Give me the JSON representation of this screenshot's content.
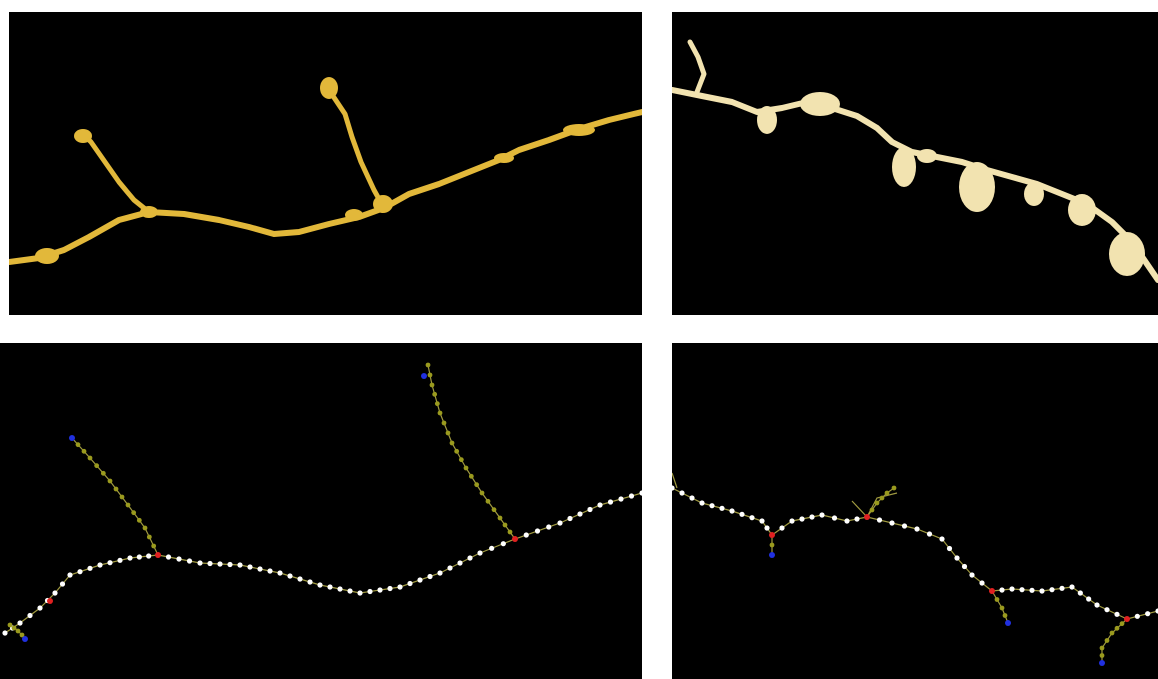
{
  "figure": {
    "panels": [
      {
        "id": "top-left",
        "content": "dendrite-surface-render",
        "color": "#e2b83a"
      },
      {
        "id": "top-right",
        "content": "dendrite-surface-render",
        "color": "#f2e3b0"
      },
      {
        "id": "bottom-left",
        "content": "dendrite-skeleton-graph"
      },
      {
        "id": "bottom-right",
        "content": "dendrite-skeleton-graph"
      }
    ],
    "node_colors": {
      "trunk": "#ffffff",
      "branch": "#9a9a1e",
      "branch_point": "#e02020",
      "endpoint": "#2030e0"
    },
    "background": "#000000"
  }
}
